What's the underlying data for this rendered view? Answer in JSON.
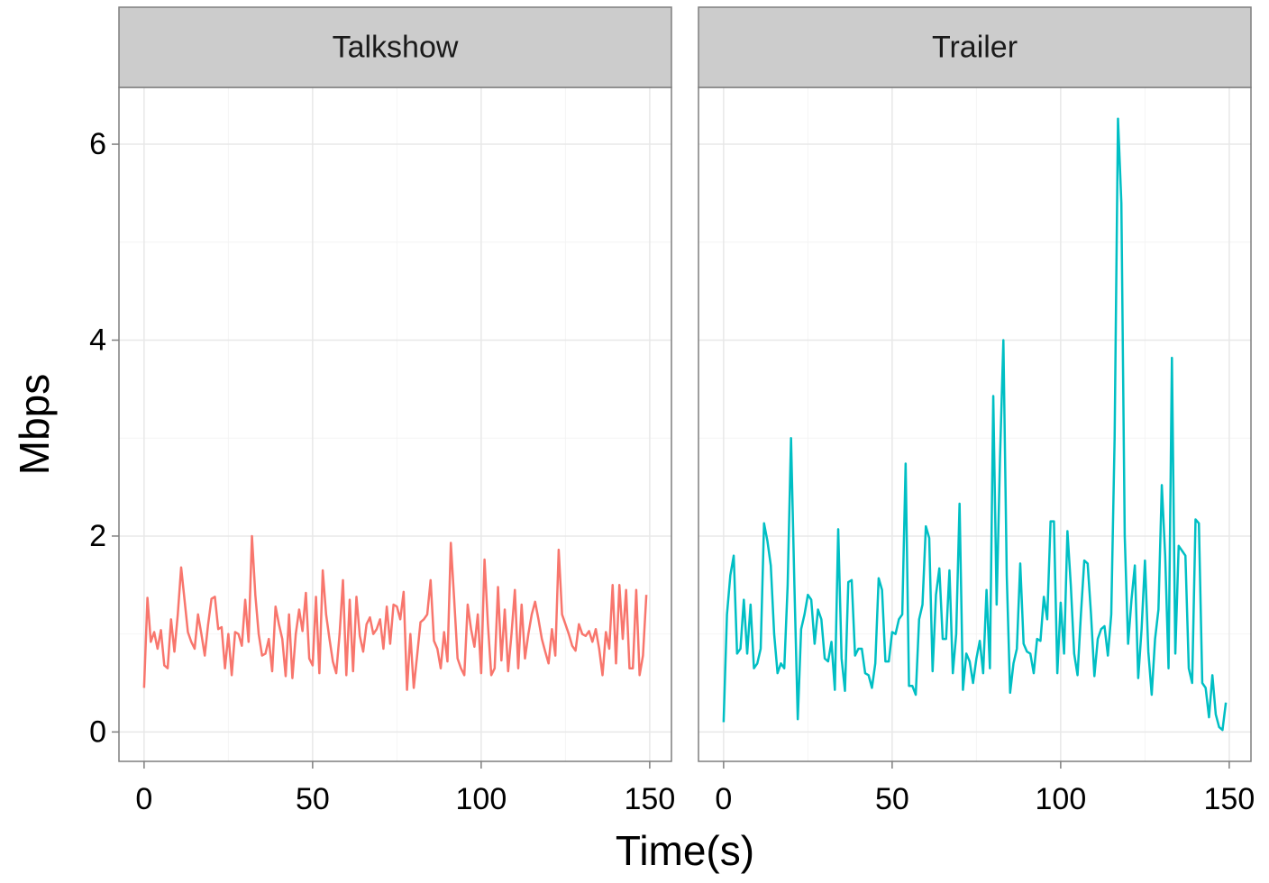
{
  "xlabel": "Time(s)",
  "ylabel": "Mbps",
  "chart_data": [
    {
      "type": "line",
      "title": "Talkshow",
      "color": "#f8766d",
      "grid": true,
      "xlim": [
        -7.45,
        156.45
      ],
      "xticks": [
        0,
        50,
        100,
        150
      ],
      "ylim": [
        -0.3,
        6.58
      ],
      "yticks": [
        0,
        2,
        4,
        6
      ],
      "x": [
        0,
        1,
        2,
        3,
        4,
        5,
        6,
        7,
        8,
        9,
        10,
        11,
        12,
        13,
        14,
        15,
        16,
        17,
        18,
        19,
        20,
        21,
        22,
        23,
        24,
        25,
        26,
        27,
        28,
        29,
        30,
        31,
        32,
        33,
        34,
        35,
        36,
        37,
        38,
        39,
        40,
        41,
        42,
        43,
        44,
        45,
        46,
        47,
        48,
        49,
        50,
        51,
        52,
        53,
        54,
        55,
        56,
        57,
        58,
        59,
        60,
        61,
        62,
        63,
        64,
        65,
        66,
        67,
        68,
        69,
        70,
        71,
        72,
        73,
        74,
        75,
        76,
        77,
        78,
        79,
        80,
        81,
        82,
        83,
        84,
        85,
        86,
        87,
        88,
        89,
        90,
        91,
        92,
        93,
        94,
        95,
        96,
        97,
        98,
        99,
        100,
        101,
        102,
        103,
        104,
        105,
        106,
        107,
        108,
        109,
        110,
        111,
        112,
        113,
        114,
        115,
        116,
        117,
        118,
        119,
        120,
        121,
        122,
        123,
        124,
        125,
        126,
        127,
        128,
        129,
        130,
        131,
        132,
        133,
        134,
        135,
        136,
        137,
        138,
        139,
        140,
        141,
        142,
        143,
        144,
        145,
        146,
        147,
        148,
        149
      ],
      "values": [
        0.45,
        1.37,
        0.92,
        1.02,
        0.85,
        1.04,
        0.68,
        0.65,
        1.15,
        0.82,
        1.2,
        1.68,
        1.35,
        1.02,
        0.92,
        0.85,
        1.2,
        1.0,
        0.78,
        1.1,
        1.36,
        1.38,
        1.05,
        1.07,
        0.65,
        1.0,
        0.58,
        1.02,
        1.0,
        0.88,
        1.35,
        0.92,
        2.0,
        1.4,
        1.0,
        0.78,
        0.8,
        0.95,
        0.62,
        1.28,
        1.1,
        0.95,
        0.57,
        1.2,
        0.55,
        1.0,
        1.25,
        1.03,
        1.42,
        0.75,
        0.68,
        1.38,
        0.6,
        1.65,
        1.2,
        0.95,
        0.72,
        0.6,
        1.0,
        1.55,
        0.58,
        1.35,
        0.62,
        1.38,
        0.98,
        0.82,
        1.1,
        1.17,
        1.0,
        1.05,
        1.15,
        0.85,
        1.28,
        0.9,
        1.3,
        1.28,
        1.15,
        1.43,
        0.43,
        1.0,
        0.45,
        0.78,
        1.12,
        1.15,
        1.2,
        1.55,
        0.93,
        0.85,
        0.65,
        1.02,
        0.72,
        1.93,
        1.35,
        0.75,
        0.65,
        0.58,
        1.3,
        1.05,
        0.87,
        1.2,
        0.6,
        1.76,
        1.1,
        0.58,
        0.65,
        1.48,
        0.73,
        1.25,
        0.62,
        1.0,
        1.45,
        0.65,
        1.3,
        0.75,
        1.0,
        1.2,
        1.33,
        1.15,
        0.95,
        0.82,
        0.7,
        1.05,
        0.78,
        1.86,
        1.2,
        1.1,
        1.0,
        0.88,
        0.83,
        1.1,
        1.0,
        0.98,
        1.03,
        0.92,
        1.05,
        0.85,
        0.58,
        1.02,
        0.85,
        1.5,
        0.7,
        1.5,
        0.95,
        1.45,
        0.65,
        0.65,
        1.45,
        0.58,
        0.78,
        1.4
      ]
    },
    {
      "type": "line",
      "title": "Trailer",
      "color": "#00bfc4",
      "grid": true,
      "xlim": [
        -7.45,
        156.45
      ],
      "xticks": [
        0,
        50,
        100,
        150
      ],
      "ylim": [
        -0.3,
        6.58
      ],
      "yticks": [
        0,
        2,
        4,
        6
      ],
      "x": [
        0,
        1,
        2,
        3,
        4,
        5,
        6,
        7,
        8,
        9,
        10,
        11,
        12,
        13,
        14,
        15,
        16,
        17,
        18,
        19,
        20,
        21,
        22,
        23,
        24,
        25,
        26,
        27,
        28,
        29,
        30,
        31,
        32,
        33,
        34,
        35,
        36,
        37,
        38,
        39,
        40,
        41,
        42,
        43,
        44,
        45,
        46,
        47,
        48,
        49,
        50,
        51,
        52,
        53,
        54,
        55,
        56,
        57,
        58,
        59,
        60,
        61,
        62,
        63,
        64,
        65,
        66,
        67,
        68,
        69,
        70,
        71,
        72,
        73,
        74,
        75,
        76,
        77,
        78,
        79,
        80,
        81,
        82,
        83,
        84,
        85,
        86,
        87,
        88,
        89,
        90,
        91,
        92,
        93,
        94,
        95,
        96,
        97,
        98,
        99,
        100,
        101,
        102,
        103,
        104,
        105,
        106,
        107,
        108,
        109,
        110,
        111,
        112,
        113,
        114,
        115,
        116,
        117,
        118,
        119,
        120,
        121,
        122,
        123,
        124,
        125,
        126,
        127,
        128,
        129,
        130,
        131,
        132,
        133,
        134,
        135,
        136,
        137,
        138,
        139,
        140,
        141,
        142,
        143,
        144,
        145,
        146,
        147,
        148,
        149
      ],
      "values": [
        0.1,
        1.2,
        1.6,
        1.8,
        0.8,
        0.85,
        1.35,
        0.8,
        1.3,
        0.65,
        0.7,
        0.85,
        2.13,
        1.95,
        1.7,
        1.0,
        0.6,
        0.7,
        0.65,
        1.5,
        3.0,
        1.5,
        0.13,
        1.05,
        1.2,
        1.4,
        1.35,
        0.9,
        1.25,
        1.15,
        0.75,
        0.72,
        0.92,
        0.43,
        2.07,
        0.75,
        0.42,
        1.53,
        1.55,
        0.78,
        0.85,
        0.85,
        0.6,
        0.58,
        0.45,
        0.7,
        1.57,
        1.45,
        0.72,
        0.72,
        1.02,
        1.0,
        1.15,
        1.2,
        2.74,
        0.47,
        0.47,
        0.38,
        1.15,
        1.3,
        2.1,
        1.98,
        0.62,
        1.4,
        1.67,
        0.95,
        0.95,
        1.65,
        0.6,
        1.0,
        2.33,
        0.43,
        0.8,
        0.72,
        0.5,
        0.75,
        0.93,
        0.6,
        1.45,
        0.65,
        3.43,
        1.3,
        2.8,
        4.0,
        1.6,
        0.4,
        0.7,
        0.85,
        1.72,
        0.9,
        0.82,
        0.8,
        0.6,
        0.95,
        0.93,
        1.38,
        1.15,
        2.15,
        2.15,
        0.6,
        1.32,
        0.8,
        2.05,
        1.5,
        0.8,
        0.58,
        1.2,
        1.75,
        1.72,
        1.2,
        0.57,
        0.95,
        1.05,
        1.08,
        0.78,
        1.2,
        3.0,
        6.26,
        5.4,
        2.0,
        0.9,
        1.35,
        1.7,
        0.55,
        1.05,
        1.75,
        0.82,
        0.38,
        0.95,
        1.25,
        2.52,
        1.8,
        0.65,
        3.82,
        0.8,
        1.9,
        1.85,
        1.8,
        0.65,
        0.5,
        2.17,
        2.13,
        0.5,
        0.45,
        0.15,
        0.58,
        0.18,
        0.05,
        0.02,
        0.3
      ]
    }
  ]
}
